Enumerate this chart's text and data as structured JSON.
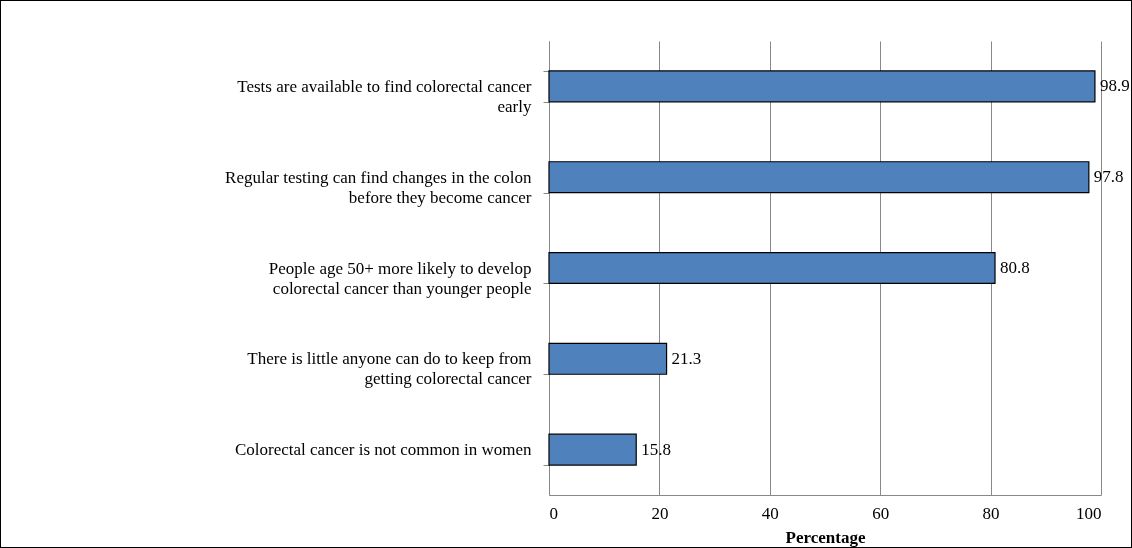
{
  "chart_data": {
    "type": "bar",
    "orientation": "horizontal",
    "categories": [
      "Tests are available to find colorectal cancer early",
      "Regular testing can find changes in the colon before they become cancer",
      "People age 50+ more likely to develop colorectal cancer than younger people",
      "There is little anyone can do to keep from getting colorectal cancer",
      "Colorectal cancer is not common in women"
    ],
    "values": [
      98.9,
      97.8,
      80.8,
      21.3,
      15.8
    ],
    "color": "#4f81bd",
    "xlim": [
      0,
      100
    ],
    "xticks": [
      0,
      20,
      40,
      60,
      80,
      100
    ],
    "xlabel": "Percentage",
    "grid": "x",
    "data_labels": true
  }
}
